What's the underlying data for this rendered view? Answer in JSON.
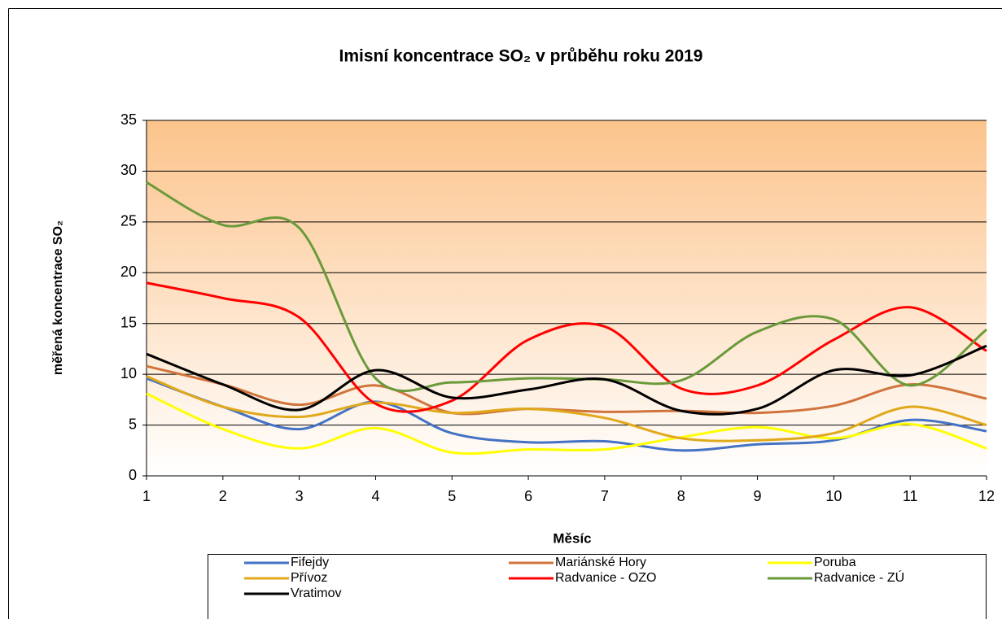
{
  "chart_data": {
    "type": "line",
    "title": "Imisní koncentrace SO₂ v průběhu roku 2019",
    "x_label": "Měsíc",
    "y_label": "měřená koncentrace SO₂",
    "x": [
      1,
      2,
      3,
      4,
      5,
      6,
      7,
      8,
      9,
      10,
      11,
      12
    ],
    "xlim": [
      1,
      12
    ],
    "xticks": [
      1,
      2,
      3,
      4,
      5,
      6,
      7,
      8,
      9,
      10,
      11,
      12
    ],
    "ylim": [
      0,
      35
    ],
    "yticks": [
      0,
      5,
      10,
      15,
      20,
      25,
      30,
      35
    ],
    "grid": true,
    "smooth": true,
    "legend_position": "bottom",
    "series": [
      {
        "name": "Fifejdy",
        "color": "#4472c4",
        "values": [
          9.6,
          6.8,
          4.6,
          7.3,
          4.2,
          3.3,
          3.4,
          2.5,
          3.1,
          3.5,
          5.5,
          4.4
        ]
      },
      {
        "name": "Mariánské Hory",
        "color": "#d0743c",
        "values": [
          10.8,
          9.0,
          7.0,
          8.9,
          6.2,
          6.6,
          6.3,
          6.4,
          6.2,
          6.9,
          9.0,
          7.6
        ]
      },
      {
        "name": "Poruba",
        "color": "#ffff00",
        "values": [
          8.1,
          4.6,
          2.7,
          4.7,
          2.3,
          2.6,
          2.6,
          3.8,
          4.8,
          3.7,
          5.1,
          2.7
        ]
      },
      {
        "name": "Přívoz",
        "color": "#e0a81a",
        "values": [
          9.8,
          6.8,
          5.8,
          7.2,
          6.2,
          6.6,
          5.7,
          3.7,
          3.5,
          4.2,
          6.8,
          5.0
        ]
      },
      {
        "name": "Radvanice - OZO",
        "color": "#ff0000",
        "values": [
          19.0,
          17.5,
          15.6,
          7.1,
          7.4,
          13.4,
          14.7,
          8.6,
          8.9,
          13.4,
          16.6,
          12.3
        ]
      },
      {
        "name": "Radvanice - ZÚ",
        "color": "#6a9a3a",
        "values": [
          28.9,
          24.7,
          24.4,
          9.6,
          9.2,
          9.6,
          9.5,
          9.4,
          14.2,
          15.4,
          8.9,
          14.4
        ]
      },
      {
        "name": "Vratimov",
        "color": "#000000",
        "values": [
          12.0,
          9.0,
          6.5,
          10.4,
          7.7,
          8.5,
          9.5,
          6.4,
          6.6,
          10.4,
          9.9,
          12.8
        ]
      }
    ]
  }
}
